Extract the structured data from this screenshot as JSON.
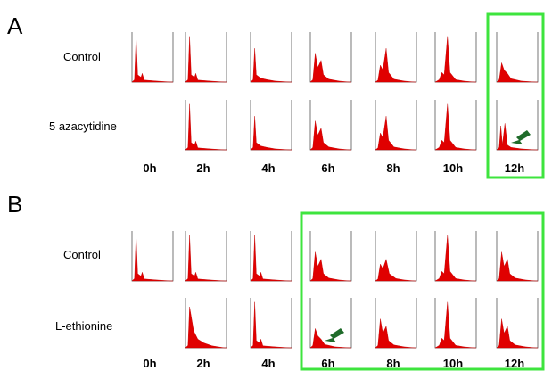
{
  "figure": {
    "colors": {
      "histogram": "#e00000",
      "highlight": "#3ee43e",
      "arrow": "#1f6b2a"
    },
    "panels": [
      {
        "letter": "A",
        "rows": [
          {
            "label": "Control",
            "profiles": {
              "0h": "g1",
              "2h": "g1",
              "4h": "g1s",
              "6h": "g1g2",
              "8h": "g2",
              "10h": "g2big",
              "12h": "g1low"
            }
          },
          {
            "label": "5 azacytidine",
            "profiles": {
              "2h": "g1",
              "4h": "g1s",
              "6h": "g1g2",
              "8h": "g2",
              "10h": "g2big",
              "12h": "subpop"
            }
          }
        ],
        "time_points": [
          "0h",
          "2h",
          "4h",
          "6h",
          "8h",
          "10h",
          "12h"
        ],
        "highlight": {
          "from": "12h",
          "to": "12h"
        },
        "arrow": {
          "time": "12h",
          "row": 1
        }
      },
      {
        "letter": "B",
        "rows": [
          {
            "label": "Control",
            "profiles": {
              "0h": "g1",
              "2h": "g1",
              "4h": "g1",
              "6h": "g1g2",
              "8h": "g2hump",
              "10h": "g2big",
              "12h": "g1g2"
            }
          },
          {
            "label": "L-ethionine",
            "profiles": {
              "2h": "broad",
              "4h": "g1",
              "6h": "g1low",
              "8h": "g1g2",
              "10h": "g2big",
              "12h": "g1g2"
            }
          }
        ],
        "time_points": [
          "0h",
          "2h",
          "4h",
          "6h",
          "8h",
          "10h",
          "12h"
        ],
        "highlight": {
          "from": "6h",
          "to": "12h"
        },
        "arrow": {
          "time": "6h",
          "row": 1
        }
      }
    ]
  }
}
